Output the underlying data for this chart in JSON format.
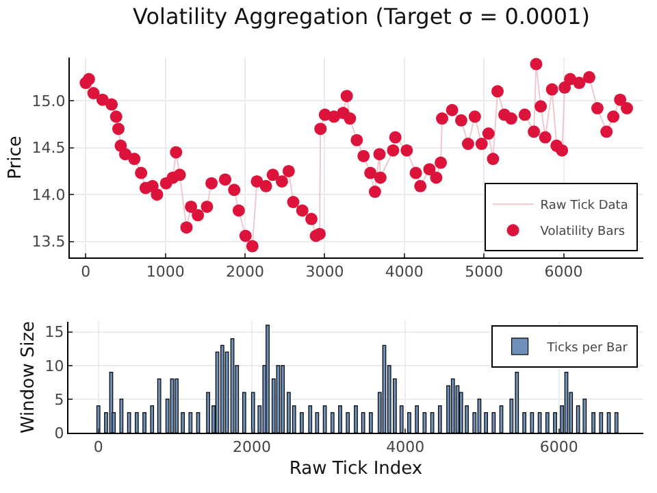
{
  "chart_data": [
    {
      "type": "scatter",
      "title": "Volatility Aggregation (Target σ = 0.0001)",
      "ylabel": "Price",
      "x": [
        0,
        40,
        97,
        211,
        325,
        382,
        410,
        439,
        496,
        610,
        695,
        752,
        838,
        895,
        1009,
        1094,
        1134,
        1180,
        1265,
        1322,
        1408,
        1522,
        1579,
        1750,
        1864,
        1921,
        2006,
        2092,
        2149,
        2263,
        2349,
        2463,
        2548,
        2605,
        2719,
        2833,
        2890,
        2936,
        2947,
        3003,
        3117,
        3231,
        3277,
        3317,
        3403,
        3488,
        3574,
        3631,
        3688,
        3699,
        3859,
        3887,
        4030,
        4144,
        4201,
        4315,
        4400,
        4457,
        4474,
        4600,
        4714,
        4800,
        4885,
        4970,
        5056,
        5113,
        5170,
        5256,
        5341,
        5512,
        5626,
        5655,
        5712,
        5769,
        5854,
        5911,
        5979,
        6013,
        6082,
        6196,
        6321,
        6424,
        6538,
        6623,
        6709,
        6794
      ],
      "series": [
        {
          "name": "Raw Tick Data",
          "type": "line",
          "marker": "none",
          "color": "#f0c8cc",
          "values": [
            15.19,
            15.23,
            15.08,
            15.01,
            14.96,
            14.83,
            14.7,
            14.52,
            14.43,
            14.38,
            14.23,
            14.07,
            14.09,
            14.0,
            14.12,
            14.18,
            14.45,
            14.21,
            13.65,
            13.87,
            13.78,
            13.87,
            14.12,
            14.16,
            14.05,
            13.83,
            13.56,
            13.45,
            14.14,
            14.09,
            14.21,
            14.14,
            14.25,
            13.92,
            13.83,
            13.74,
            13.56,
            13.58,
            14.7,
            14.85,
            14.83,
            14.87,
            15.05,
            14.81,
            14.58,
            14.41,
            14.23,
            14.03,
            14.43,
            14.18,
            14.47,
            14.61,
            14.47,
            14.23,
            14.09,
            14.27,
            14.18,
            14.34,
            14.81,
            14.9,
            14.79,
            14.54,
            14.83,
            14.54,
            14.65,
            14.38,
            15.1,
            14.85,
            14.81,
            14.85,
            14.67,
            15.39,
            14.94,
            14.61,
            15.12,
            14.52,
            14.47,
            15.14,
            15.23,
            15.19,
            15.25,
            14.92,
            14.67,
            14.83,
            15.01,
            14.92
          ]
        },
        {
          "name": "Volatility Bars",
          "marker": "circle",
          "color": "#dc143c",
          "values": [
            15.19,
            15.23,
            15.08,
            15.01,
            14.96,
            14.83,
            14.7,
            14.52,
            14.43,
            14.38,
            14.23,
            14.07,
            14.09,
            14.0,
            14.12,
            14.18,
            14.45,
            14.21,
            13.65,
            13.87,
            13.78,
            13.87,
            14.12,
            14.16,
            14.05,
            13.83,
            13.56,
            13.45,
            14.14,
            14.09,
            14.21,
            14.14,
            14.25,
            13.92,
            13.83,
            13.74,
            13.56,
            13.58,
            14.7,
            14.85,
            14.83,
            14.87,
            15.05,
            14.81,
            14.58,
            14.41,
            14.23,
            14.03,
            14.43,
            14.18,
            14.47,
            14.61,
            14.47,
            14.23,
            14.09,
            14.27,
            14.18,
            14.34,
            14.81,
            14.9,
            14.79,
            14.54,
            14.83,
            14.54,
            14.65,
            14.38,
            15.1,
            14.85,
            14.81,
            14.85,
            14.67,
            15.39,
            14.94,
            14.61,
            15.12,
            14.52,
            14.47,
            15.14,
            15.23,
            15.19,
            15.25,
            14.92,
            14.67,
            14.83,
            15.01,
            14.92
          ]
        }
      ],
      "xlim": [
        -200,
        7000
      ],
      "xticks": [
        0,
        1000,
        2000,
        3000,
        4000,
        5000,
        6000
      ],
      "ylim": [
        13.33,
        15.46
      ],
      "yticks": [
        13.5,
        {
          "value": 14,
          "label": "14.0"
        },
        14.5,
        {
          "value": 15,
          "label": "15.0"
        }
      ],
      "grid": true,
      "legend": "bottom right"
    },
    {
      "type": "bar",
      "xlabel": "Raw Tick Index",
      "ylabel": "Window Size",
      "x": [
        0,
        100,
        167,
        200,
        300,
        400,
        500,
        600,
        700,
        793,
        900,
        960,
        1019,
        1100,
        1200,
        1300,
        1430,
        1500,
        1550,
        1615,
        1675,
        1746,
        1806,
        1900,
        2015,
        2100,
        2163,
        2205,
        2283,
        2342,
        2402,
        2480,
        2550,
        2650,
        2760,
        2850,
        2950,
        3050,
        3150,
        3250,
        3355,
        3450,
        3550,
        3665,
        3725,
        3790,
        3862,
        3950,
        4050,
        4150,
        4250,
        4350,
        4450,
        4559,
        4619,
        4679,
        4726,
        4800,
        4900,
        4964,
        5050,
        5150,
        5250,
        5382,
        5453,
        5550,
        5650,
        5750,
        5850,
        5950,
        6040,
        6097,
        6157,
        6250,
        6336,
        6450,
        6550,
        6650,
        6750
      ],
      "series": [
        {
          "name": "Ticks per Bar",
          "color": "#6d8fb8",
          "values": [
            4,
            3,
            9,
            3,
            5,
            3,
            3,
            3,
            4,
            8,
            5,
            8,
            8,
            3,
            3,
            3,
            6,
            4,
            12,
            13,
            12,
            14,
            10,
            6,
            6,
            4,
            10,
            16,
            8,
            10,
            10,
            6,
            4,
            3,
            4,
            3,
            4,
            3,
            4,
            3,
            4,
            3,
            3,
            6,
            13,
            10,
            8,
            4,
            3,
            4,
            3,
            3,
            4,
            7,
            8,
            7,
            6,
            4,
            3,
            5,
            3,
            3,
            4,
            5,
            9,
            3,
            3,
            3,
            3,
            3,
            4,
            9,
            6,
            4,
            5,
            3,
            3,
            3,
            3
          ]
        }
      ],
      "xlim": [
        -390,
        7100
      ],
      "xticks": [
        0,
        2000,
        4000,
        6000
      ],
      "ylim": [
        0,
        16.5
      ],
      "yticks": [
        0,
        5,
        10,
        15
      ],
      "grid": true,
      "legend": "top right"
    }
  ]
}
